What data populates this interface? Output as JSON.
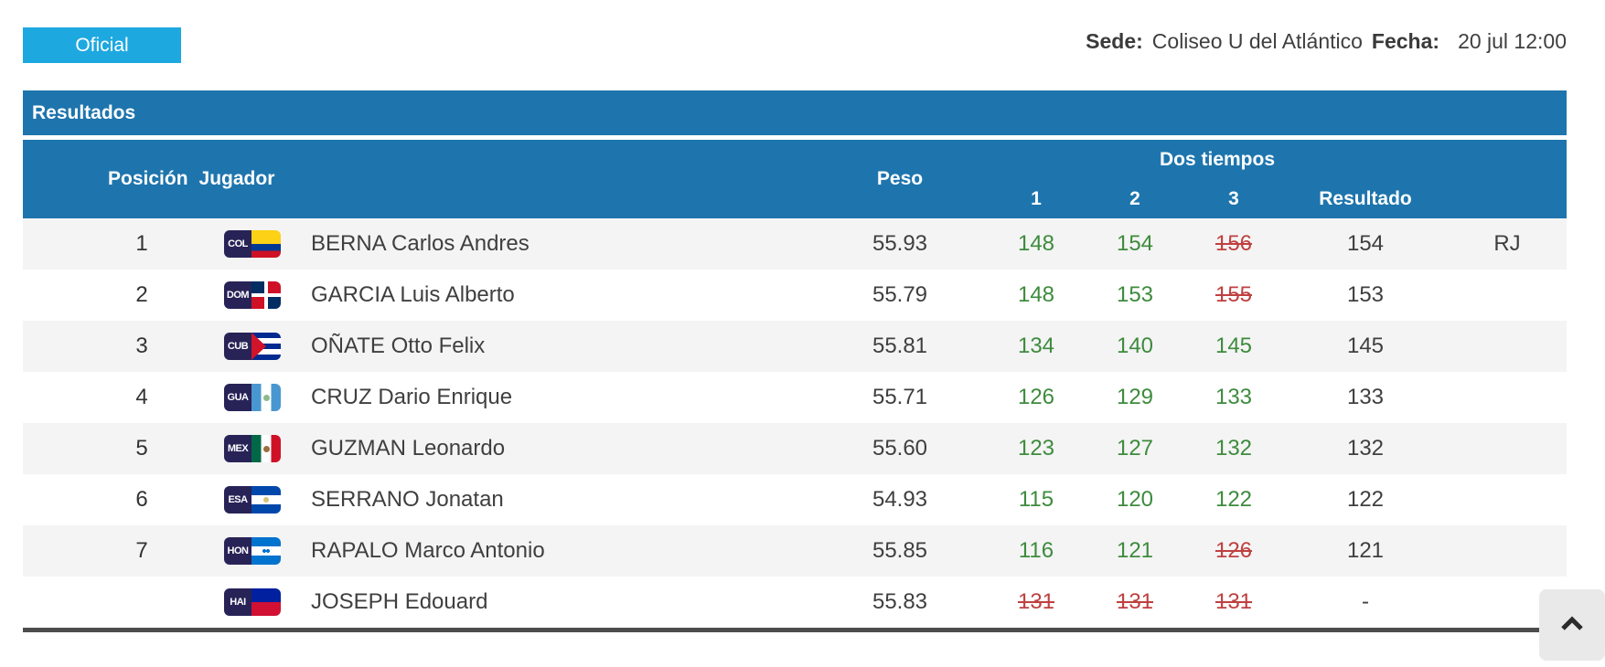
{
  "page": {
    "official_label": "Oficial",
    "venue": {
      "sede_label": "Sede:",
      "sede_value": "Coliseo U del Atlántico",
      "fecha_label": "Fecha:",
      "fecha_value": "20 jul 12:00"
    }
  },
  "table": {
    "title": "Resultados",
    "columns": {
      "posicion": "Posición",
      "jugador": "Jugador",
      "peso": "Peso",
      "dos_tiempos": "Dos tiempos",
      "a1": "1",
      "a2": "2",
      "a3": "3",
      "resultado": "Resultado"
    },
    "rows": [
      {
        "posicion": "1",
        "pais": "COL",
        "jugador": "BERNA Carlos Andres",
        "peso": "55.93",
        "intentos": [
          {
            "valor": "148",
            "valido": true
          },
          {
            "valor": "154",
            "valido": true
          },
          {
            "valor": "156",
            "valido": false
          }
        ],
        "resultado": "154",
        "nota": "RJ"
      },
      {
        "posicion": "2",
        "pais": "DOM",
        "jugador": "GARCIA Luis Alberto",
        "peso": "55.79",
        "intentos": [
          {
            "valor": "148",
            "valido": true
          },
          {
            "valor": "153",
            "valido": true
          },
          {
            "valor": "155",
            "valido": false
          }
        ],
        "resultado": "153",
        "nota": ""
      },
      {
        "posicion": "3",
        "pais": "CUB",
        "jugador": "OÑATE Otto Felix",
        "peso": "55.81",
        "intentos": [
          {
            "valor": "134",
            "valido": true
          },
          {
            "valor": "140",
            "valido": true
          },
          {
            "valor": "145",
            "valido": true
          }
        ],
        "resultado": "145",
        "nota": ""
      },
      {
        "posicion": "4",
        "pais": "GUA",
        "jugador": "CRUZ Dario Enrique",
        "peso": "55.71",
        "intentos": [
          {
            "valor": "126",
            "valido": true
          },
          {
            "valor": "129",
            "valido": true
          },
          {
            "valor": "133",
            "valido": true
          }
        ],
        "resultado": "133",
        "nota": ""
      },
      {
        "posicion": "5",
        "pais": "MEX",
        "jugador": "GUZMAN Leonardo",
        "peso": "55.60",
        "intentos": [
          {
            "valor": "123",
            "valido": true
          },
          {
            "valor": "127",
            "valido": true
          },
          {
            "valor": "132",
            "valido": true
          }
        ],
        "resultado": "132",
        "nota": ""
      },
      {
        "posicion": "6",
        "pais": "ESA",
        "jugador": "SERRANO Jonatan",
        "peso": "54.93",
        "intentos": [
          {
            "valor": "115",
            "valido": true
          },
          {
            "valor": "120",
            "valido": true
          },
          {
            "valor": "122",
            "valido": true
          }
        ],
        "resultado": "122",
        "nota": ""
      },
      {
        "posicion": "7",
        "pais": "HON",
        "jugador": "RAPALO Marco Antonio",
        "peso": "55.85",
        "intentos": [
          {
            "valor": "116",
            "valido": true
          },
          {
            "valor": "121",
            "valido": true
          },
          {
            "valor": "126",
            "valido": false
          }
        ],
        "resultado": "121",
        "nota": ""
      },
      {
        "posicion": "",
        "pais": "HAI",
        "jugador": "JOSEPH Edouard",
        "peso": "55.83",
        "intentos": [
          {
            "valor": "131",
            "valido": false
          },
          {
            "valor": "131",
            "valido": false
          },
          {
            "valor": "131",
            "valido": false
          }
        ],
        "resultado": "-",
        "nota": ""
      }
    ]
  },
  "colors": {
    "accent_cyan": "#1ea8e0",
    "header_blue": "#1e75ad",
    "good_lift_green": "#3d8b3d",
    "failed_lift_red": "#bf4040",
    "text_dark": "#3f3f3f",
    "row_alt_gray": "#f4f4f4"
  },
  "scroll_top": {
    "icon": "chevron-up-icon"
  }
}
